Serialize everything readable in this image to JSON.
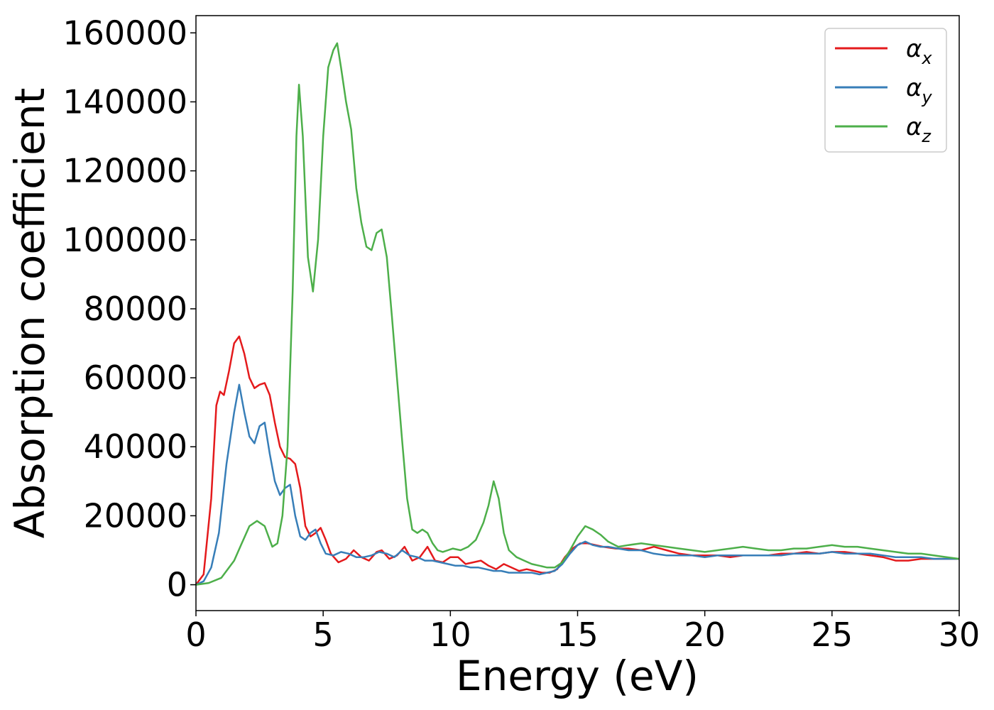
{
  "chart_data": {
    "type": "line",
    "title": "",
    "xlabel": "Energy (eV)",
    "ylabel": "Absorption coefficient",
    "xlim": [
      0,
      30
    ],
    "ylim": [
      -7500,
      165000
    ],
    "xticks": [
      0,
      5,
      10,
      15,
      20,
      25,
      30
    ],
    "yticks": [
      0,
      20000,
      40000,
      60000,
      80000,
      100000,
      120000,
      140000,
      160000
    ],
    "grid": false,
    "legend_position": "top-right",
    "series": [
      {
        "name": "αx",
        "legend_base": "α",
        "legend_sub": "x",
        "color": "#e41a1c",
        "x": [
          0,
          0.3,
          0.6,
          0.8,
          0.95,
          1.1,
          1.3,
          1.5,
          1.7,
          1.9,
          2.1,
          2.3,
          2.5,
          2.7,
          2.9,
          3.1,
          3.3,
          3.5,
          3.7,
          3.9,
          4.1,
          4.3,
          4.5,
          4.7,
          4.9,
          5.1,
          5.3,
          5.6,
          5.9,
          6.2,
          6.5,
          6.8,
          7.1,
          7.3,
          7.6,
          7.9,
          8.2,
          8.5,
          8.8,
          9.1,
          9.4,
          9.7,
          10.0,
          10.3,
          10.6,
          10.9,
          11.2,
          11.5,
          11.8,
          12.1,
          12.4,
          12.7,
          13.0,
          13.3,
          13.6,
          13.9,
          14.2,
          14.5,
          14.8,
          15.1,
          15.4,
          15.7,
          16.0,
          16.5,
          17.0,
          17.5,
          18.0,
          18.5,
          19.0,
          19.5,
          20.0,
          20.5,
          21.0,
          21.5,
          22.0,
          22.5,
          23.0,
          23.5,
          24.0,
          24.5,
          25.0,
          25.5,
          26.0,
          26.5,
          27.0,
          27.5,
          28.0,
          28.5,
          29.0,
          29.5,
          30.0
        ],
        "y": [
          0,
          3000,
          25000,
          52000,
          56000,
          55000,
          62000,
          70000,
          72000,
          67000,
          60000,
          57000,
          58000,
          58500,
          55000,
          47000,
          40000,
          37000,
          36500,
          35000,
          28000,
          17000,
          14000,
          15000,
          16500,
          13000,
          9000,
          6500,
          7500,
          10000,
          8000,
          7000,
          9500,
          10000,
          7500,
          8500,
          11000,
          7000,
          8000,
          11000,
          7000,
          6500,
          8000,
          8000,
          6000,
          6500,
          7000,
          5500,
          4500,
          6000,
          5000,
          4000,
          4500,
          4000,
          3500,
          3500,
          4500,
          8000,
          10500,
          12000,
          12000,
          11500,
          11000,
          10500,
          10500,
          10000,
          11000,
          10000,
          9000,
          8500,
          8500,
          8500,
          8000,
          8500,
          8500,
          8500,
          9000,
          9000,
          9500,
          9000,
          9500,
          9500,
          9000,
          8500,
          8000,
          7000,
          7000,
          7500,
          7500,
          7500,
          7500
        ]
      },
      {
        "name": "αy",
        "legend_base": "α",
        "legend_sub": "y",
        "color": "#377eb8",
        "x": [
          0,
          0.3,
          0.6,
          0.9,
          1.2,
          1.5,
          1.7,
          1.9,
          2.1,
          2.3,
          2.5,
          2.7,
          2.9,
          3.1,
          3.3,
          3.5,
          3.7,
          3.9,
          4.1,
          4.3,
          4.5,
          4.7,
          4.9,
          5.1,
          5.4,
          5.7,
          6.0,
          6.3,
          6.6,
          6.9,
          7.2,
          7.5,
          7.8,
          8.1,
          8.4,
          8.7,
          9.0,
          9.3,
          9.6,
          9.9,
          10.2,
          10.5,
          10.8,
          11.1,
          11.4,
          11.7,
          12.0,
          12.3,
          12.6,
          12.9,
          13.2,
          13.5,
          13.8,
          14.1,
          14.4,
          14.7,
          15.0,
          15.3,
          15.6,
          15.9,
          16.2,
          16.6,
          17.0,
          17.5,
          18.0,
          18.5,
          19.0,
          19.5,
          20.0,
          20.5,
          21.0,
          21.5,
          22.0,
          22.5,
          23.0,
          23.5,
          24.0,
          24.5,
          25.0,
          25.5,
          26.0,
          26.5,
          27.0,
          27.5,
          28.0,
          28.5,
          29.0,
          29.5,
          30.0
        ],
        "y": [
          0,
          1000,
          5000,
          15000,
          35000,
          50000,
          58000,
          50000,
          43000,
          41000,
          46000,
          47000,
          38000,
          30000,
          26000,
          28000,
          29000,
          20000,
          14000,
          13000,
          15000,
          16000,
          12000,
          9000,
          8500,
          9500,
          9000,
          8000,
          8000,
          8500,
          9500,
          9000,
          8000,
          10000,
          8500,
          8000,
          7000,
          7000,
          6500,
          6000,
          5500,
          5500,
          5000,
          5000,
          4500,
          4000,
          4000,
          3500,
          3500,
          3500,
          3500,
          3000,
          3500,
          4000,
          6000,
          9000,
          11500,
          12500,
          11500,
          11000,
          11000,
          10500,
          10000,
          10000,
          9000,
          8500,
          8500,
          8500,
          8000,
          8500,
          8500,
          8500,
          8500,
          8500,
          8500,
          9000,
          9000,
          9000,
          9500,
          9000,
          9000,
          9000,
          8500,
          8000,
          8000,
          8000,
          7500,
          7500,
          7500
        ]
      },
      {
        "name": "αz",
        "legend_base": "α",
        "legend_sub": "z",
        "color": "#4daf4a",
        "x": [
          0,
          0.5,
          1.0,
          1.5,
          1.8,
          2.1,
          2.4,
          2.7,
          3.0,
          3.2,
          3.4,
          3.6,
          3.8,
          3.95,
          4.05,
          4.2,
          4.4,
          4.6,
          4.8,
          5.0,
          5.2,
          5.4,
          5.55,
          5.7,
          5.9,
          6.1,
          6.3,
          6.5,
          6.7,
          6.9,
          7.1,
          7.3,
          7.5,
          7.7,
          7.9,
          8.1,
          8.3,
          8.5,
          8.7,
          8.9,
          9.1,
          9.3,
          9.5,
          9.7,
          9.9,
          10.1,
          10.4,
          10.7,
          11.0,
          11.3,
          11.5,
          11.7,
          11.9,
          12.1,
          12.3,
          12.6,
          12.9,
          13.2,
          13.5,
          13.8,
          14.1,
          14.4,
          14.7,
          15.0,
          15.3,
          15.6,
          15.9,
          16.2,
          16.6,
          17.0,
          17.5,
          18.0,
          18.5,
          19.0,
          19.5,
          20.0,
          20.5,
          21.0,
          21.5,
          22.0,
          22.5,
          23.0,
          23.5,
          24.0,
          24.5,
          25.0,
          25.5,
          26.0,
          26.5,
          27.0,
          27.5,
          28.0,
          28.5,
          29.0,
          29.5,
          30.0
        ],
        "y": [
          0,
          500,
          2000,
          7000,
          12000,
          17000,
          18500,
          17000,
          11000,
          12000,
          20000,
          40000,
          85000,
          130000,
          145000,
          130000,
          95000,
          85000,
          100000,
          130000,
          150000,
          155000,
          157000,
          150000,
          140000,
          132000,
          115000,
          105000,
          98000,
          97000,
          102000,
          103000,
          95000,
          78000,
          60000,
          42000,
          25000,
          16000,
          15000,
          16000,
          15000,
          12000,
          10000,
          9500,
          10000,
          10500,
          10000,
          11000,
          13000,
          18000,
          23000,
          30000,
          25000,
          15000,
          10000,
          8000,
          7000,
          6000,
          5500,
          5000,
          5000,
          6500,
          10000,
          14000,
          17000,
          16000,
          14500,
          12500,
          11000,
          11500,
          12000,
          11500,
          11000,
          10500,
          10000,
          9500,
          10000,
          10500,
          11000,
          10500,
          10000,
          10000,
          10500,
          10500,
          11000,
          11500,
          11000,
          11000,
          10500,
          10000,
          9500,
          9000,
          9000,
          8500,
          8000,
          7500
        ]
      }
    ]
  }
}
